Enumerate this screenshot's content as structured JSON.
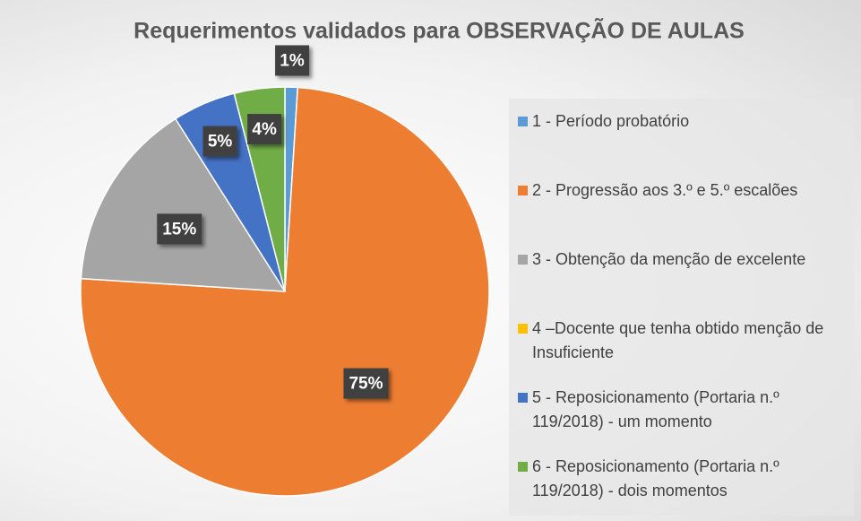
{
  "chart_data": {
    "type": "pie",
    "title": "Requerimentos validados para OBSERVAÇÃO DE AULAS",
    "categories": [
      "1 - Período probatório",
      "2 - Progressão aos 3.º e 5.º escalões",
      "3 - Obtenção da menção de excelente",
      "4 –Docente que tenha obtido menção de Insuficiente",
      "5 - Reposicionamento (Portaria n.º 119/2018) - um momento",
      "6 - Reposicionamento (Portaria n.º 119/2018) - dois momentos"
    ],
    "values": [
      1,
      75,
      15,
      0,
      5,
      4
    ],
    "value_labels": [
      "1%",
      "75%",
      "15%",
      null,
      "5%",
      "4%"
    ],
    "colors": [
      "#5b9bd5",
      "#ed7d31",
      "#a5a5a5",
      "#ffc000",
      "#4472c4",
      "#70ad47"
    ],
    "legend": "right"
  }
}
